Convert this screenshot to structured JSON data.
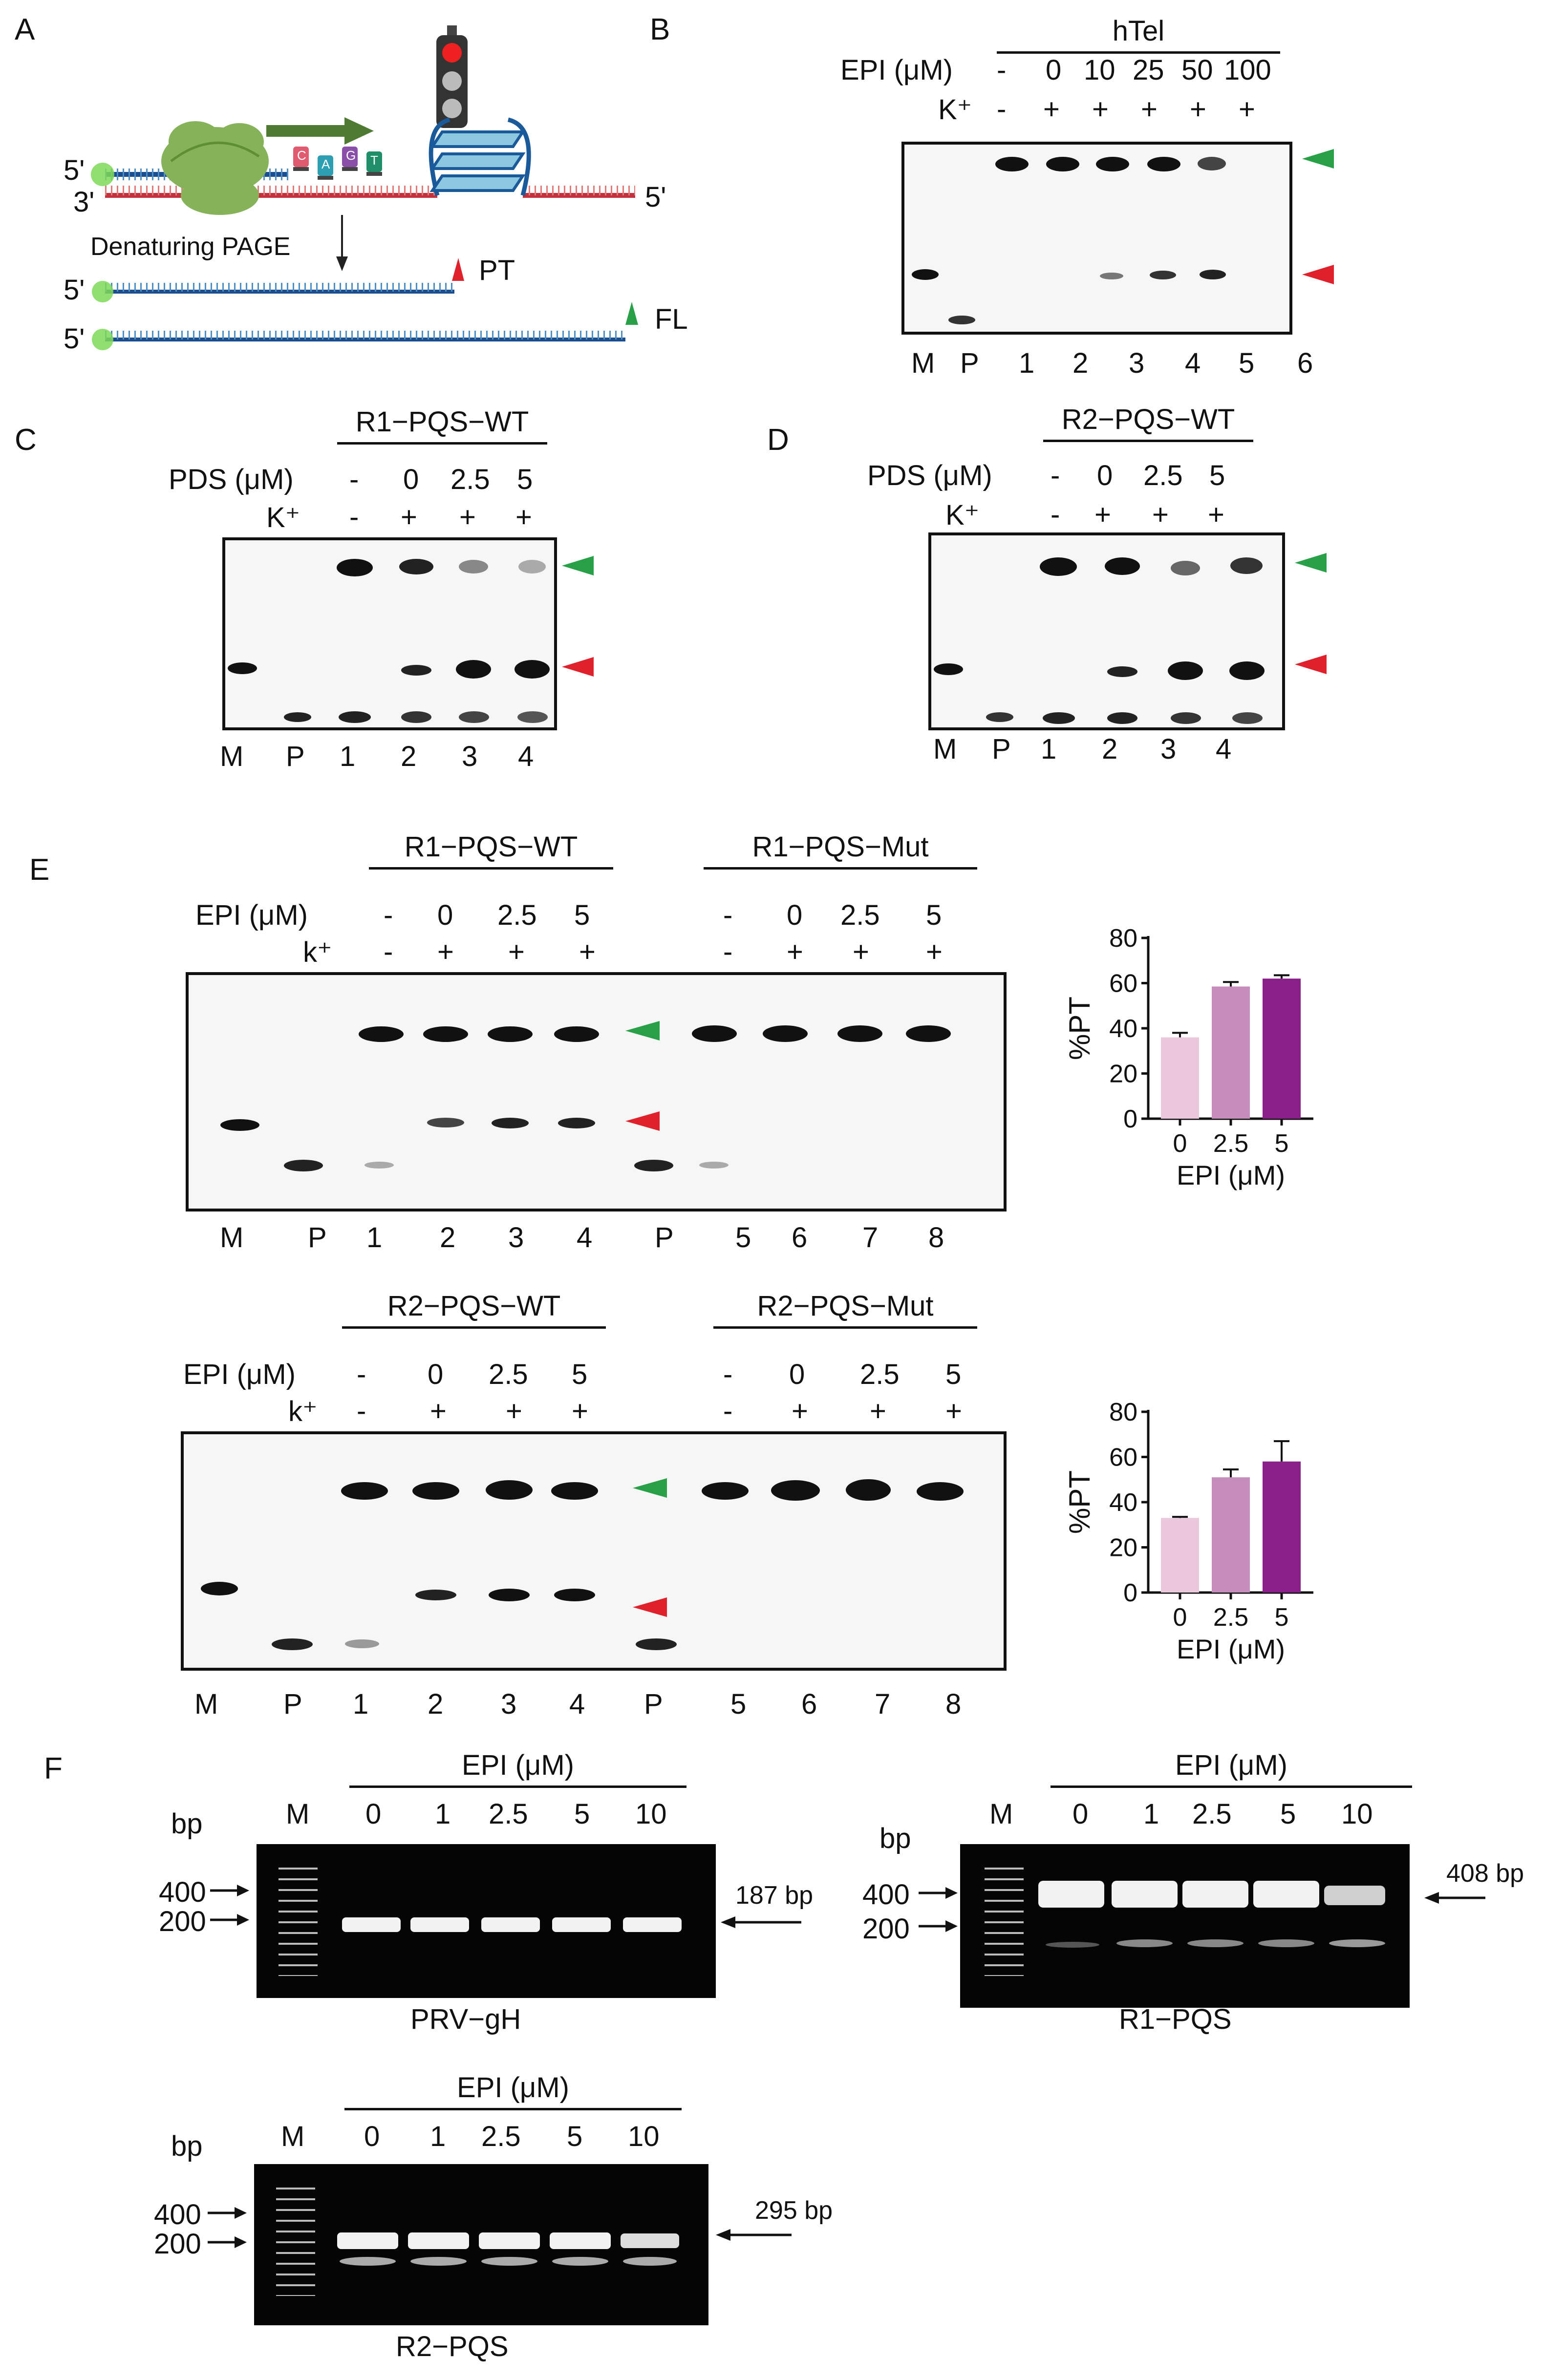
{
  "panelA": {
    "label": "A",
    "five_prime_top": "5'",
    "three_prime": "3'",
    "five_prime_right": "5'",
    "denaturing": "Denaturing PAGE",
    "five_prime_pt": "5'",
    "five_prime_fl": "5'",
    "pt_label": "PT",
    "fl_label": "FL",
    "nucleotides": [
      "C",
      "A",
      "G",
      "T"
    ]
  },
  "panelB": {
    "label": "B",
    "sample": "hTel",
    "conc_label": "EPI (μM)",
    "conc_values": [
      "-",
      "0",
      "10",
      "25",
      "50",
      "100"
    ],
    "k_label": "K⁺",
    "k_values": [
      "-",
      "+",
      "+",
      "+",
      "+",
      "+"
    ],
    "lanes": [
      "M",
      "P",
      "1",
      "2",
      "3",
      "4",
      "5",
      "6"
    ]
  },
  "panelC": {
    "label": "C",
    "sample": "R1−PQS−WT",
    "conc_label": "PDS (μM)",
    "conc_values": [
      "-",
      "0",
      "2.5",
      "5"
    ],
    "k_label": "K⁺",
    "k_values": [
      "-",
      "+",
      "+",
      "+"
    ],
    "lanes": [
      "M",
      "P",
      "1",
      "2",
      "3",
      "4"
    ]
  },
  "panelD": {
    "label": "D",
    "sample": "R2−PQS−WT",
    "conc_label": "PDS (μM)",
    "conc_values": [
      "-",
      "0",
      "2.5",
      "5"
    ],
    "k_label": "K⁺",
    "k_values": [
      "-",
      "+",
      "+",
      "+"
    ],
    "lanes": [
      "M",
      "P",
      "1",
      "2",
      "3",
      "4"
    ]
  },
  "panelE": {
    "label": "E",
    "top": {
      "sample_wt": "R1−PQS−WT",
      "sample_mut": "R1−PQS−Mut",
      "conc_label": "EPI (μM)",
      "conc_values": [
        "-",
        "0",
        "2.5",
        "5"
      ],
      "k_label": "k⁺",
      "k_values": [
        "-",
        "+",
        "+",
        "+"
      ],
      "lanes": [
        "M",
        "P",
        "1",
        "2",
        "3",
        "4",
        "P",
        "5",
        "6",
        "7",
        "8"
      ]
    },
    "bottom": {
      "sample_wt": "R2−PQS−WT",
      "sample_mut": "R2−PQS−Mut",
      "conc_label": "EPI (μM)",
      "conc_values": [
        "-",
        "0",
        "2.5",
        "5"
      ],
      "k_label": "k⁺",
      "k_values": [
        "-",
        "+",
        "+",
        "+"
      ],
      "lanes": [
        "M",
        "P",
        "1",
        "2",
        "3",
        "4",
        "P",
        "5",
        "6",
        "7",
        "8"
      ]
    }
  },
  "panelF": {
    "label": "F",
    "gels": [
      {
        "header": "EPI (μM)",
        "bp": "bp",
        "marker": "M",
        "concs": [
          "0",
          "1",
          "2.5",
          "5",
          "10"
        ],
        "ladder": [
          "400",
          "200"
        ],
        "product": "187 bp",
        "name": "PRV−gH"
      },
      {
        "header": "EPI (μM)",
        "bp": "bp",
        "marker": "M",
        "concs": [
          "0",
          "1",
          "2.5",
          "5",
          "10"
        ],
        "ladder": [
          "400",
          "200"
        ],
        "product": "408 bp",
        "name": "R1−PQS"
      },
      {
        "header": "EPI (μM)",
        "bp": "bp",
        "marker": "M",
        "concs": [
          "0",
          "1",
          "2.5",
          "5",
          "10"
        ],
        "ladder": [
          "400",
          "200"
        ],
        "product": "295 bp",
        "name": "R2−PQS"
      }
    ]
  },
  "chart_data": [
    {
      "type": "bar",
      "categories": [
        "0",
        "2.5",
        "5"
      ],
      "values": [
        36,
        58.5,
        62
      ],
      "errors": [
        2,
        2,
        1.5
      ],
      "ylabel": "%PT",
      "xlabel": "EPI (μM)",
      "ylim": [
        0,
        80
      ],
      "yticks": [
        "0",
        "20",
        "40",
        "60",
        "80"
      ],
      "colors": [
        "#ebc7dc",
        "#c58cbc",
        "#8a1f8a"
      ]
    },
    {
      "type": "bar",
      "categories": [
        "0",
        "2.5",
        "5"
      ],
      "values": [
        33,
        51,
        58
      ],
      "errors": [
        0.5,
        3.5,
        9
      ],
      "ylabel": "%PT",
      "xlabel": "EPI (μM)",
      "ylim": [
        0,
        80
      ],
      "yticks": [
        "0",
        "20",
        "40",
        "60",
        "80"
      ],
      "colors": [
        "#ebc7dc",
        "#c58cbc",
        "#8a1f8a"
      ]
    }
  ]
}
